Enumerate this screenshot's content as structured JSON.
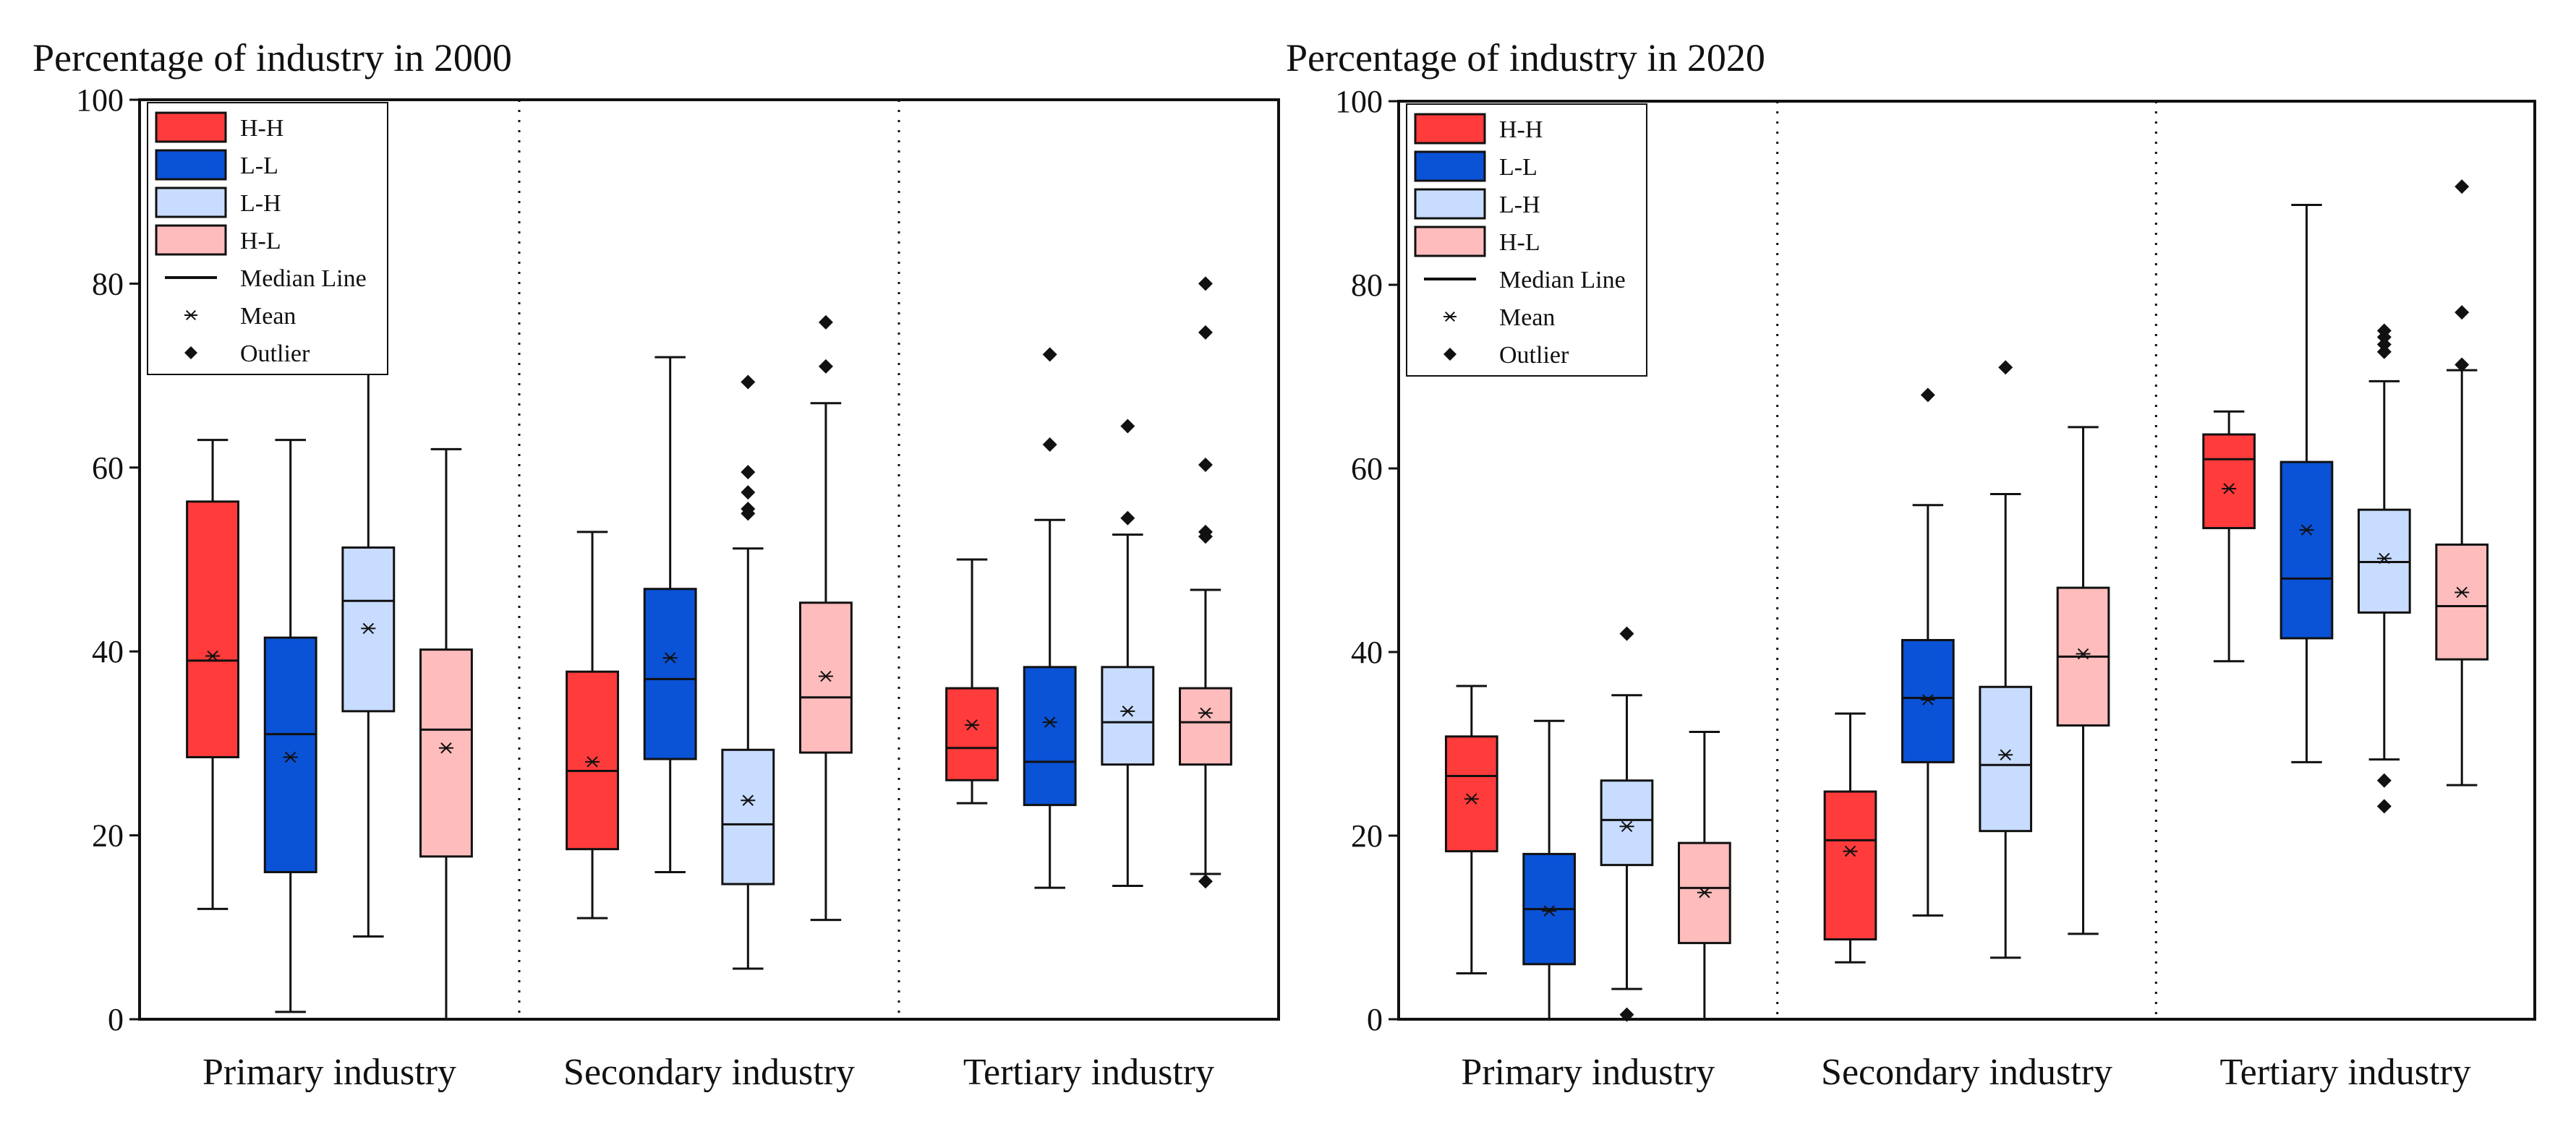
{
  "chart_data": [
    {
      "type": "boxplot",
      "title": "Percentage of industry in 2000",
      "ylim": [
        0,
        100
      ],
      "yticks": [
        0,
        20,
        40,
        60,
        80,
        100
      ],
      "categories": [
        "Primary industry",
        "Secondary industry",
        "Tertiary industry"
      ],
      "series": [
        {
          "name": "H-H",
          "color": "#ff3b3b",
          "boxes": [
            {
              "min": 12,
              "q1": 28.5,
              "median": 39,
              "q3": 56.3,
              "max": 63,
              "mean": 39.5,
              "outliers": []
            },
            {
              "min": 11,
              "q1": 18.5,
              "median": 27,
              "q3": 37.8,
              "max": 53,
              "mean": 28,
              "outliers": []
            },
            {
              "min": 23.5,
              "q1": 26,
              "median": 29.5,
              "q3": 36,
              "max": 50,
              "mean": 32,
              "outliers": []
            }
          ]
        },
        {
          "name": "L-L",
          "color": "#0a52d6",
          "boxes": [
            {
              "min": 0.8,
              "q1": 16,
              "median": 31,
              "q3": 41.5,
              "max": 63,
              "mean": 28.5,
              "outliers": []
            },
            {
              "min": 16,
              "q1": 28.3,
              "median": 37,
              "q3": 46.8,
              "max": 72,
              "mean": 39.3,
              "outliers": []
            },
            {
              "min": 14.3,
              "q1": 23.3,
              "median": 28,
              "q3": 38.3,
              "max": 54.3,
              "mean": 32.3,
              "outliers": [
                62.5,
                72.3
              ]
            }
          ]
        },
        {
          "name": "L-H",
          "color": "#c8dcff",
          "boxes": [
            {
              "min": 9,
              "q1": 33.5,
              "median": 45.5,
              "q3": 51.3,
              "max": 70.5,
              "mean": 42.5,
              "outliers": []
            },
            {
              "min": 5.5,
              "q1": 14.7,
              "median": 21.2,
              "q3": 29.3,
              "max": 51.2,
              "mean": 23.8,
              "outliers": [
                55,
                55.5,
                57.3,
                59.5,
                69.3
              ]
            },
            {
              "min": 14.5,
              "q1": 27.7,
              "median": 32.3,
              "q3": 38.3,
              "max": 52.7,
              "mean": 33.5,
              "outliers": [
                54.5,
                64.5
              ]
            }
          ]
        },
        {
          "name": "H-L",
          "color": "#ffbcbc",
          "boxes": [
            {
              "min": 0,
              "q1": 17.7,
              "median": 31.5,
              "q3": 40.2,
              "max": 62,
              "mean": 29.5,
              "outliers": []
            },
            {
              "min": 10.8,
              "q1": 29,
              "median": 35,
              "q3": 45.3,
              "max": 67,
              "mean": 37.3,
              "outliers": [
                71,
                75.8
              ]
            },
            {
              "min": 15.8,
              "q1": 27.7,
              "median": 32.3,
              "q3": 36,
              "max": 46.7,
              "mean": 33.3,
              "outliers": [
                15,
                52.5,
                53,
                60.3,
                74.7,
                80
              ]
            }
          ]
        }
      ],
      "legend": {
        "entries": [
          "H-H",
          "L-L",
          "L-H",
          "H-L"
        ],
        "median_label": "Median Line",
        "mean_label": "Mean",
        "outlier_label": "Outlier",
        "position": "top-left"
      }
    },
    {
      "type": "boxplot",
      "title": "Percentage of industry in 2020",
      "ylim": [
        0,
        100
      ],
      "yticks": [
        0,
        20,
        40,
        60,
        80,
        100
      ],
      "categories": [
        "Primary industry",
        "Secondary industry",
        "Tertiary industry"
      ],
      "series": [
        {
          "name": "H-H",
          "color": "#ff3b3b",
          "boxes": [
            {
              "min": 5,
              "q1": 18.3,
              "median": 26.5,
              "q3": 30.8,
              "max": 36.3,
              "mean": 24,
              "outliers": []
            },
            {
              "min": 6.2,
              "q1": 8.7,
              "median": 19.5,
              "q3": 24.8,
              "max": 33.3,
              "mean": 18.3,
              "outliers": []
            },
            {
              "min": 39,
              "q1": 53.5,
              "median": 61,
              "q3": 63.7,
              "max": 66.2,
              "mean": 57.8,
              "outliers": []
            }
          ]
        },
        {
          "name": "L-L",
          "color": "#0a52d6",
          "boxes": [
            {
              "min": 0,
              "q1": 6,
              "median": 12,
              "q3": 18,
              "max": 32.5,
              "mean": 11.8,
              "outliers": []
            },
            {
              "min": 11.3,
              "q1": 28,
              "median": 35,
              "q3": 41.3,
              "max": 56,
              "mean": 34.8,
              "outliers": [
                68
              ]
            },
            {
              "min": 28,
              "q1": 41.5,
              "median": 48,
              "q3": 60.7,
              "max": 88.7,
              "mean": 53.3,
              "outliers": []
            }
          ]
        },
        {
          "name": "L-H",
          "color": "#c8dcff",
          "boxes": [
            {
              "min": 3.3,
              "q1": 16.8,
              "median": 21.7,
              "q3": 26,
              "max": 35.3,
              "mean": 21,
              "outliers": [
                0.5,
                42
              ]
            },
            {
              "min": 6.7,
              "q1": 20.5,
              "median": 27.7,
              "q3": 36.2,
              "max": 57.2,
              "mean": 28.8,
              "outliers": [
                71
              ]
            },
            {
              "min": 28.3,
              "q1": 44.3,
              "median": 49.8,
              "q3": 55.5,
              "max": 69.5,
              "mean": 50.2,
              "outliers": [
                23.2,
                26,
                72.7,
                73.5,
                74.3,
                75
              ]
            }
          ]
        },
        {
          "name": "H-L",
          "color": "#ffbcbc",
          "boxes": [
            {
              "min": 0,
              "q1": 8.3,
              "median": 14.3,
              "q3": 19.2,
              "max": 31.3,
              "mean": 13.8,
              "outliers": []
            },
            {
              "min": 9.3,
              "q1": 32,
              "median": 39.5,
              "q3": 47,
              "max": 64.5,
              "mean": 39.8,
              "outliers": []
            },
            {
              "min": 25.5,
              "q1": 39.2,
              "median": 45,
              "q3": 51.7,
              "max": 70.7,
              "mean": 46.5,
              "outliers": [
                71.3,
                77,
                90.7
              ]
            }
          ]
        }
      ],
      "legend": {
        "entries": [
          "H-H",
          "L-L",
          "L-H",
          "H-L"
        ],
        "median_label": "Median Line",
        "mean_label": "Mean",
        "outlier_label": "Outlier",
        "position": "top-left"
      }
    }
  ]
}
